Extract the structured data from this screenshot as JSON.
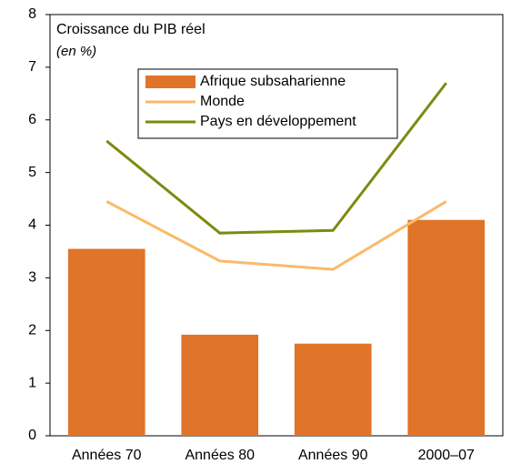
{
  "chart_data": {
    "type": "bar",
    "title": "Croissance du PIB réel",
    "subtitle": "(en %)",
    "categories": [
      "Années 70",
      "Années 80",
      "Années 90",
      "2000–07"
    ],
    "series": [
      {
        "name": "Afrique subsaharienne",
        "type": "bar",
        "color": "#e07428",
        "values": [
          3.55,
          1.92,
          1.75,
          4.1
        ]
      },
      {
        "name": "Monde",
        "type": "line",
        "color": "#fbb96a",
        "values": [
          4.45,
          3.32,
          3.16,
          4.45
        ]
      },
      {
        "name": "Pays en développement",
        "type": "line",
        "color": "#7d8a0f",
        "values": [
          5.6,
          3.85,
          3.9,
          6.7
        ]
      }
    ],
    "ylim": [
      0,
      8
    ],
    "yticks": [
      0,
      1,
      2,
      3,
      4,
      5,
      6,
      7,
      8
    ]
  }
}
